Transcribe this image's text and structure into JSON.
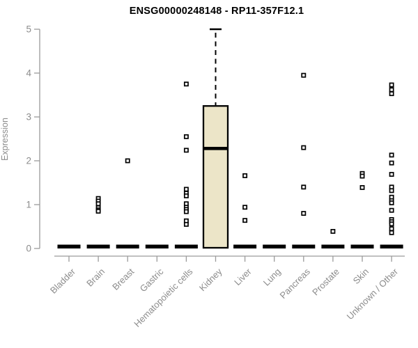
{
  "chart_data": {
    "type": "boxplot",
    "title": "ENSG00000248148 - RP11-357F12.1",
    "ylabel": "Expression",
    "xlabel": "",
    "ylim": [
      0,
      5
    ],
    "yticks": [
      0,
      1,
      2,
      3,
      4,
      5
    ],
    "grid": false,
    "legend_position": "none",
    "colors": {
      "background": "#ffffff",
      "box_fill": "#ECE5C8",
      "box_border": "#000000",
      "median_line": "#000000",
      "zero_bar": "#000000",
      "whisker": "#000000",
      "outlier_fill": "#ffffff",
      "outlier_border": "#000000",
      "axis_line": "#9a9a9a",
      "tick_text": "#8c8c8c",
      "title_text": "#000000"
    },
    "boxes": [
      {
        "category": "Bladder",
        "median": 0,
        "q1": 0,
        "q3": 0,
        "whisker_low": 0,
        "whisker_high": 0,
        "outliers": []
      },
      {
        "category": "Brain",
        "median": 0,
        "q1": 0,
        "q3": 0,
        "whisker_low": 0,
        "whisker_high": 0,
        "outliers": [
          1.14,
          1.08,
          1.02,
          0.93,
          0.88,
          0.85
        ]
      },
      {
        "category": "Breast",
        "median": 0,
        "q1": 0,
        "q3": 0,
        "whisker_low": 0,
        "whisker_high": 0,
        "outliers": [
          2.0
        ]
      },
      {
        "category": "Gastric",
        "median": 0,
        "q1": 0,
        "q3": 0,
        "whisker_low": 0,
        "whisker_high": 0,
        "outliers": []
      },
      {
        "category": "Hematopoietic cells",
        "median": 0,
        "q1": 0,
        "q3": 0,
        "whisker_low": 0,
        "whisker_high": 0,
        "outliers": [
          3.75,
          2.55,
          2.24,
          1.35,
          1.26,
          1.2,
          1.02,
          0.94,
          0.89,
          0.84,
          0.63,
          0.55
        ]
      },
      {
        "category": "Kidney",
        "median": 2.28,
        "q1": 0,
        "q3": 3.25,
        "whisker_low": 0,
        "whisker_high": 5.0,
        "outliers": []
      },
      {
        "category": "Liver",
        "median": 0,
        "q1": 0,
        "q3": 0,
        "whisker_low": 0,
        "whisker_high": 0,
        "outliers": [
          1.66,
          0.94,
          0.64
        ]
      },
      {
        "category": "Lung",
        "median": 0,
        "q1": 0,
        "q3": 0,
        "whisker_low": 0,
        "whisker_high": 0,
        "outliers": []
      },
      {
        "category": "Pancreas",
        "median": 0,
        "q1": 0,
        "q3": 0,
        "whisker_low": 0,
        "whisker_high": 0,
        "outliers": [
          3.95,
          2.3,
          1.4,
          0.8
        ]
      },
      {
        "category": "Prostate",
        "median": 0,
        "q1": 0,
        "q3": 0,
        "whisker_low": 0,
        "whisker_high": 0,
        "outliers": [
          0.39
        ]
      },
      {
        "category": "Skin",
        "median": 0,
        "q1": 0,
        "q3": 0,
        "whisker_low": 0,
        "whisker_high": 0,
        "outliers": [
          1.71,
          1.65,
          1.39
        ]
      },
      {
        "category": "Unknown / Other",
        "median": 0,
        "q1": 0,
        "q3": 0,
        "whisker_low": 0,
        "whisker_high": 0,
        "outliers": [
          3.73,
          3.62,
          3.53,
          2.13,
          1.95,
          1.69,
          1.4,
          1.32,
          1.17,
          1.09,
          1.04,
          0.87,
          0.66,
          0.61,
          0.56,
          0.45,
          0.36
        ]
      }
    ]
  }
}
